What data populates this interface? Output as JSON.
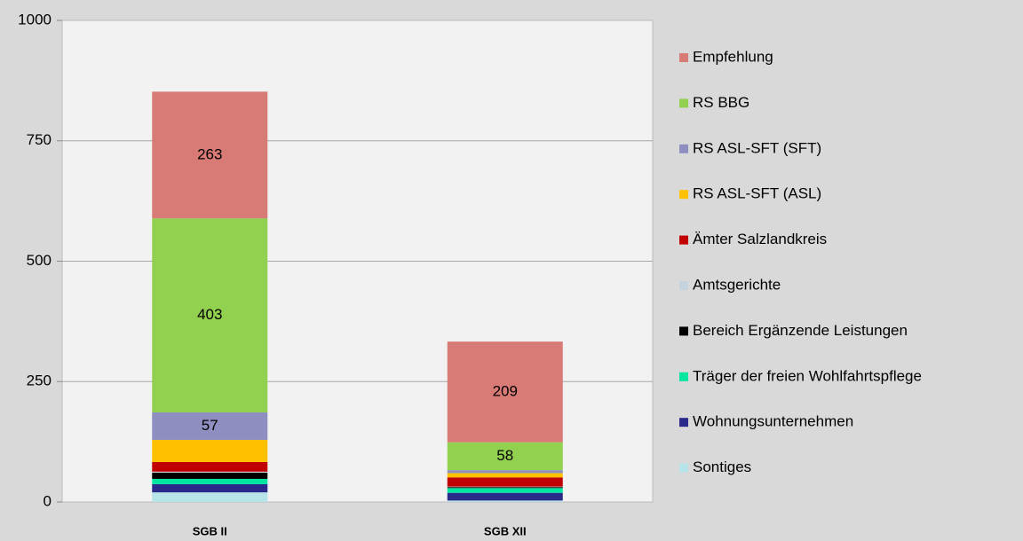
{
  "chart_data": {
    "type": "stacked_bar",
    "categories": [
      "SGB II",
      "SGB XII"
    ],
    "series": [
      {
        "name": "Sontiges",
        "color": "#b7e4e8",
        "values": [
          20,
          3
        ]
      },
      {
        "name": "Wohnungsunternehmen",
        "color": "#2a2a8a",
        "values": [
          17,
          16
        ]
      },
      {
        "name": "Träger der freien Wohlfahrtspflege",
        "color": "#00e6a0",
        "values": [
          11,
          10
        ]
      },
      {
        "name": "Bereich Ergänzende Leistungen",
        "color": "#000000",
        "values": [
          13,
          2
        ]
      },
      {
        "name": "Amtsgerichte",
        "color": "#c6d3dc",
        "values": [
          2,
          1
        ]
      },
      {
        "name": "Ämter Salzlandkreis",
        "color": "#c00000",
        "values": [
          20,
          19
        ]
      },
      {
        "name": "RS ASL-SFT (ASL)",
        "color": "#ffc000",
        "values": [
          46,
          9
        ]
      },
      {
        "name": "RS ASL-SFT (SFT)",
        "color": "#8e8ec0",
        "values": [
          57,
          6
        ]
      },
      {
        "name": "RS BBG",
        "color": "#92d050",
        "values": [
          403,
          58
        ]
      },
      {
        "name": "Empfehlung",
        "color": "#d87a76",
        "values": [
          263,
          209
        ]
      }
    ],
    "ylim": [
      0,
      1000
    ],
    "yticks": [
      0,
      250,
      500,
      750,
      1000
    ],
    "grid": true,
    "legend": "right"
  }
}
